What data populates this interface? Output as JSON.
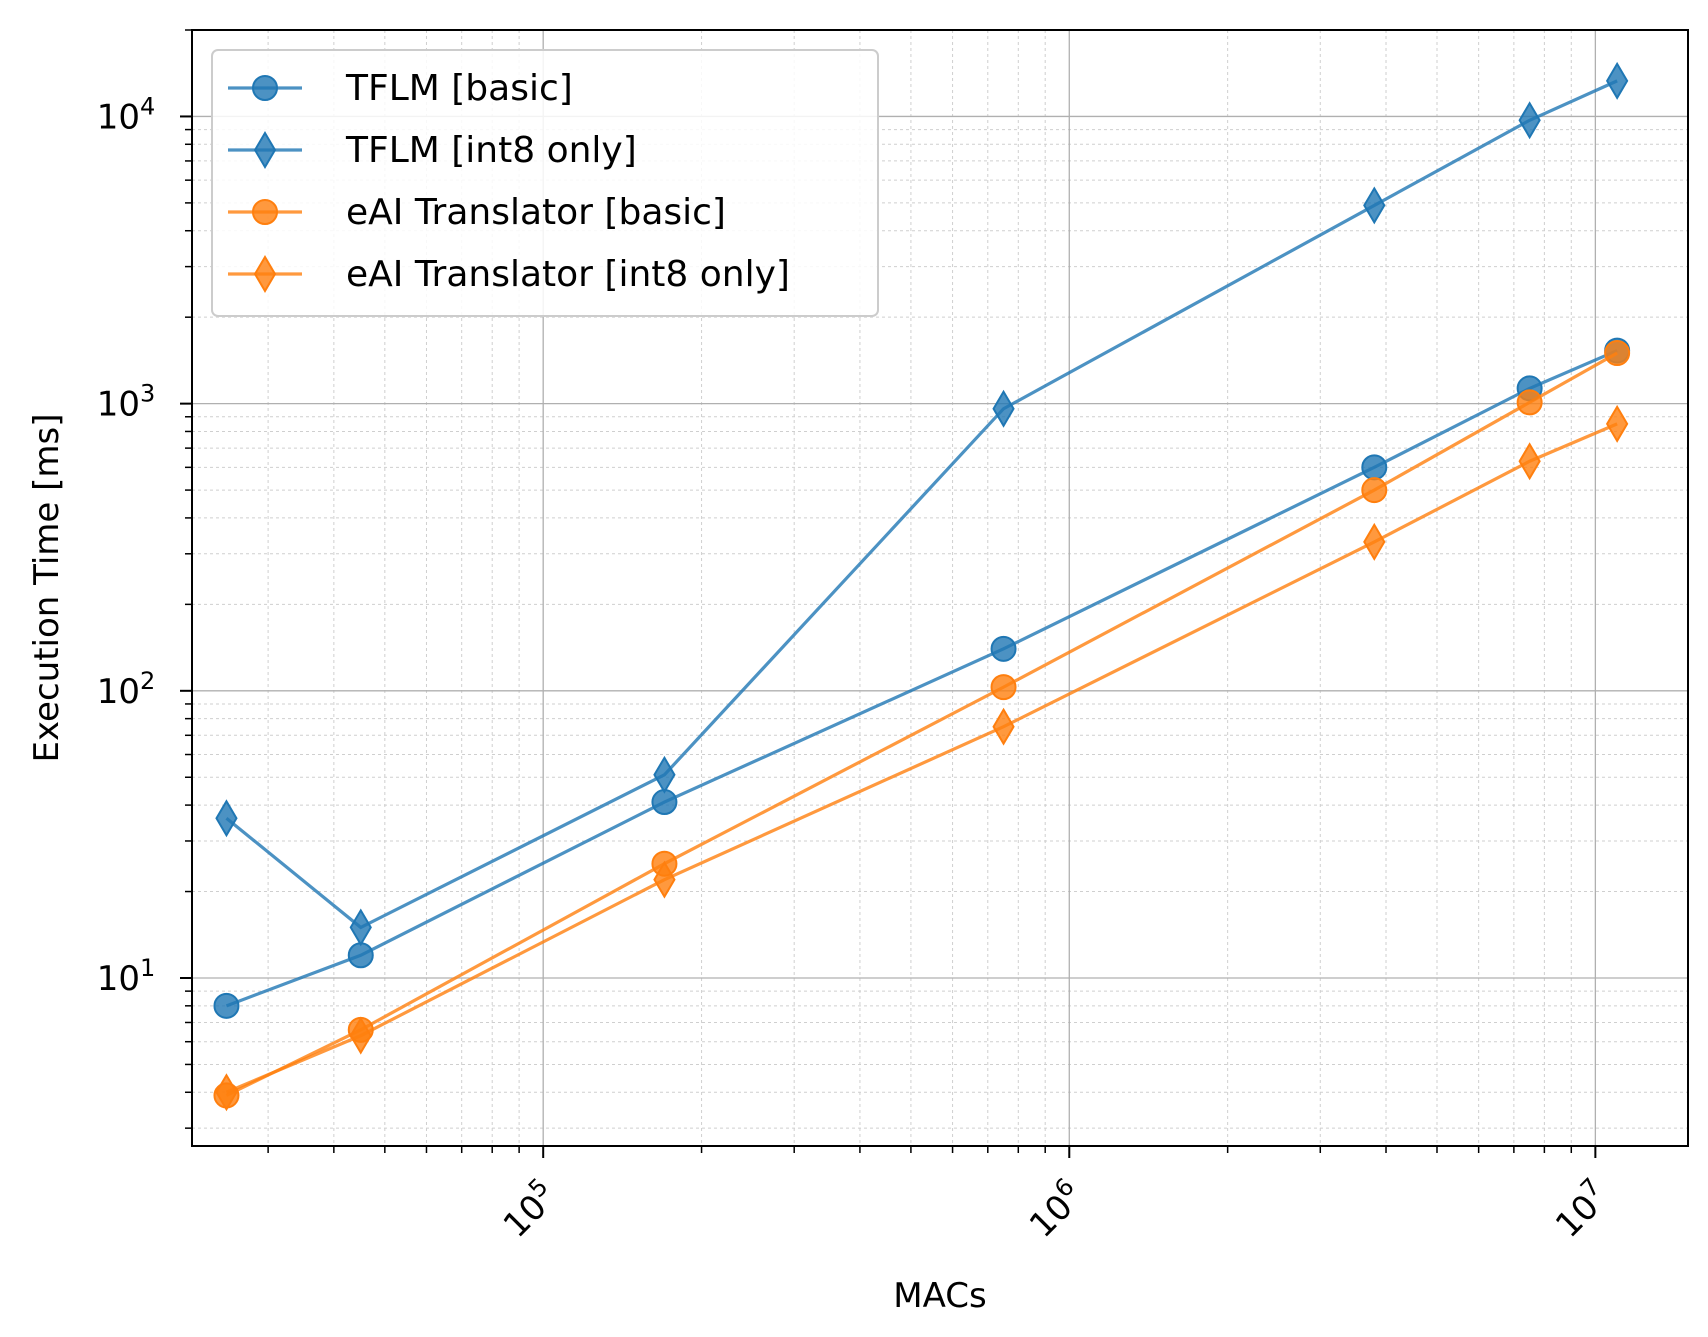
{
  "chart_data": {
    "type": "line",
    "xscale": "log",
    "yscale": "log",
    "xlabel": "MACs",
    "ylabel": "Execution Time [ms]",
    "xlim": [
      21500,
      15000000
    ],
    "ylim": [
      2.6,
      20000
    ],
    "x": [
      25000,
      45000,
      170000,
      750000,
      3800000,
      7500000,
      11000000
    ],
    "x_ticks": [
      {
        "value": 100000,
        "base": "10",
        "exp": "5"
      },
      {
        "value": 1000000,
        "base": "10",
        "exp": "6"
      },
      {
        "value": 10000000,
        "base": "10",
        "exp": "7"
      }
    ],
    "y_ticks": [
      {
        "value": 10,
        "base": "10",
        "exp": "1"
      },
      {
        "value": 100,
        "base": "10",
        "exp": "2"
      },
      {
        "value": 1000,
        "base": "10",
        "exp": "3"
      },
      {
        "value": 10000,
        "base": "10",
        "exp": "4"
      }
    ],
    "grid": {
      "major": true,
      "minor": true
    },
    "legend_position": "upper-left",
    "series": [
      {
        "name": "TFLM [basic]",
        "color": "#1f77b4",
        "marker": "circle",
        "values": [
          8,
          12,
          41,
          140,
          600,
          1130,
          1530
        ]
      },
      {
        "name": "TFLM [int8 only]",
        "color": "#1f77b4",
        "marker": "thin-diamond",
        "values": [
          36,
          15,
          51,
          960,
          4900,
          9700,
          13300
        ]
      },
      {
        "name": "eAI Translator [basic]",
        "color": "#ff7f0e",
        "marker": "circle",
        "values": [
          3.9,
          6.6,
          25,
          103,
          500,
          1010,
          1500
        ]
      },
      {
        "name": "eAI Translator [int8 only]",
        "color": "#ff7f0e",
        "marker": "thin-diamond",
        "values": [
          4.0,
          6.3,
          22,
          75,
          330,
          630,
          850
        ]
      }
    ]
  }
}
